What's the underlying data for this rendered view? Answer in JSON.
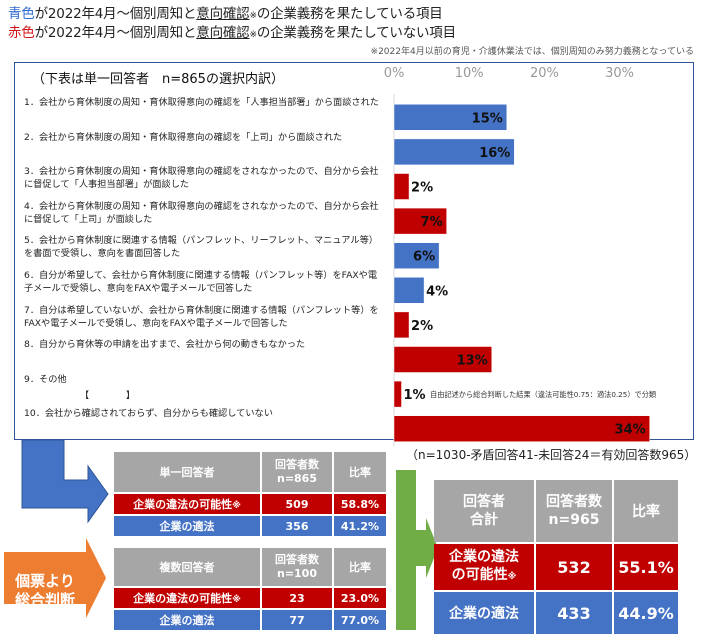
{
  "header": {
    "line1_color_word": "青色",
    "line1_text_a": "が2022年4月～個別周知と",
    "line1_underlined": "意向確認",
    "line1_mark": "※",
    "line1_text_b": "の企業義務を果たしている項目",
    "line2_color_word": "赤色",
    "line2_text_a": "が2022年4月～個別周知と",
    "line2_underlined": "意向確認",
    "line2_mark": "※",
    "line2_text_b": "の企業義務を果たしていない項目",
    "note": "※2022年4月以前の育児・介護休業法では、個別周知のみ努力義務となっている"
  },
  "panel": {
    "subtitle": "（下表は単一回答者　n=865の選択内訳）",
    "other_blank": "【　　　　】",
    "other_note": "自由記述から総合判断した結果（違法可能性0.75：適法0.25）で分類"
  },
  "chart_data": {
    "type": "bar",
    "orientation": "horizontal",
    "title": "",
    "xlabel": "",
    "ylabel": "",
    "xlim": [
      0,
      35
    ],
    "ticks": [
      0,
      10,
      20,
      30
    ],
    "tick_labels": [
      "0%",
      "10%",
      "20%",
      "30%"
    ],
    "grid": false,
    "categories": [
      "1．会社から育休制度の周知・育休取得意向の確認を「人事担当部署」から面談された",
      "2．会社から育休制度の周知・育休取得意向の確認を「上司」から面談された",
      "3．会社から育休制度の周知・育休取得意向の確認をされなかったので、自分から会社に督促して「人事担当部署」が面談した",
      "4．会社から育休制度の周知・育休取得意向の確認をされなかったので、自分から会社に督促して「上司」が面談した",
      "5．会社から育休制度に関連する情報（パンフレット、リーフレット、マニュアル等）を書面で受領し、意向を書面回答した",
      "6．自分が希望して、会社から育休制度に関連する情報（パンフレット等）をFAXや電子メールで受領し、意向をFAXや電子メールで回答した",
      "7．自分は希望していないが、会社から育休制度に関連する情報（パンフレット等）をFAXや電子メールで受領し、意向をFAXや電子メールで回答した",
      "8．自分から育休等の申請を出すまで、会社から何の動きもなかった",
      "9．その他",
      "10．会社から確認されておらず、自分からも確認していない"
    ],
    "values": [
      15,
      16,
      2,
      7,
      6,
      4,
      2,
      13,
      1,
      34
    ],
    "value_labels": [
      "15%",
      "16%",
      "2%",
      "7%",
      "6%",
      "4%",
      "2%",
      "13%",
      "1%",
      "34%"
    ],
    "status": [
      "blue",
      "blue",
      "red",
      "red",
      "blue",
      "blue",
      "red",
      "red",
      "red",
      "red"
    ],
    "colors": {
      "blue": "#4472c4",
      "red": "#c00000"
    }
  },
  "single_table": {
    "headers": [
      "単一回答者",
      "回答者数\nn=865",
      "比率"
    ],
    "rows": [
      {
        "label": "企業の違法の可能性",
        "mark": "※",
        "count": "509",
        "ratio": "58.8%"
      },
      {
        "label": "企業の適法",
        "mark": "",
        "count": "356",
        "ratio": "41.2%"
      }
    ]
  },
  "multi_table": {
    "headers": [
      "複数回答者",
      "回答者数\nn=100",
      "比率"
    ],
    "rows": [
      {
        "label": "企業の違法の可能性",
        "mark": "※",
        "count": "23",
        "ratio": "23.0%"
      },
      {
        "label": "企業の適法",
        "mark": "",
        "count": "77",
        "ratio": "77.0%"
      }
    ]
  },
  "total": {
    "title": "（n=1030-矛盾回答41-未回答24＝有効回答数965）",
    "headers": [
      "回答者\n合計",
      "回答者数\nn=965",
      "比率"
    ],
    "rows": [
      {
        "label": "企業の違法\nの可能性",
        "mark": "※",
        "count": "532",
        "ratio": "55.1%"
      },
      {
        "label": "企業の適法",
        "mark": "",
        "count": "433",
        "ratio": "44.9%"
      }
    ]
  },
  "arrow_label": "個票より\n総合判断",
  "colors": {
    "blue": "#4472c4",
    "red": "#c00000",
    "gray": "#a6a6a6",
    "orange": "#ed7d31",
    "green": "#70ad47",
    "frame": "#2f5597"
  }
}
